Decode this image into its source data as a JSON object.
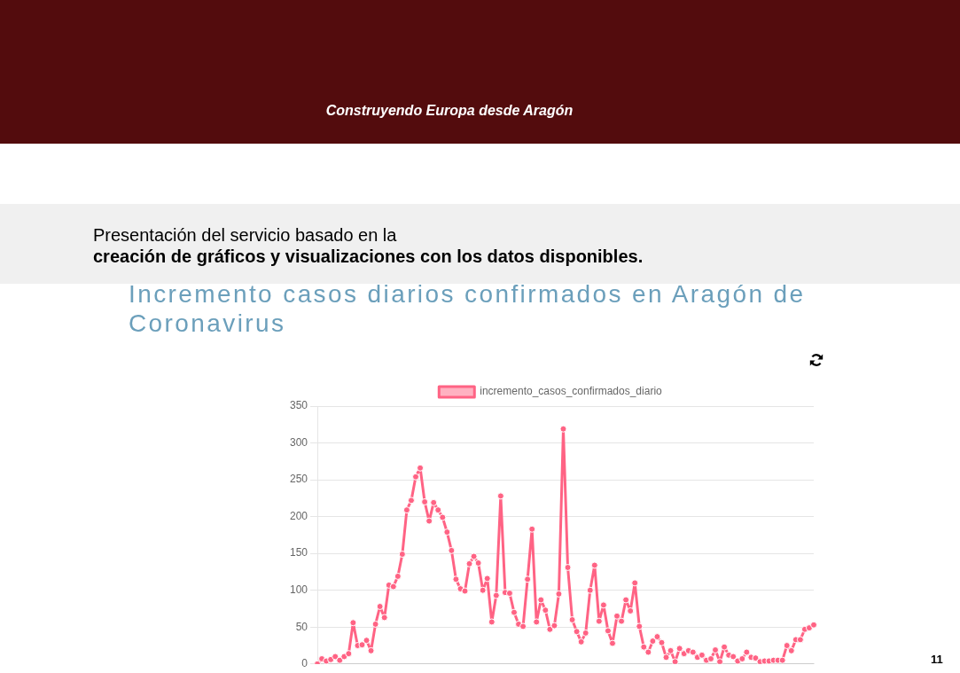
{
  "chart_data": {
    "type": "line",
    "title": "Incremento casos diarios confirmados en Aragón de Coronavirus",
    "categories": [
      null,
      null,
      null,
      null,
      null,
      null,
      null,
      null,
      null,
      null,
      null,
      null,
      null,
      null,
      null,
      null,
      null,
      null,
      null,
      null,
      null,
      null,
      null,
      null,
      null,
      null,
      null,
      null,
      null,
      null,
      null,
      null,
      null,
      null,
      null,
      null,
      null,
      null,
      null,
      null,
      null,
      null,
      null,
      null,
      null,
      null,
      null,
      null,
      null,
      null,
      null,
      null,
      null,
      null,
      null,
      null,
      null,
      null,
      null,
      null,
      null,
      null,
      null,
      null,
      null,
      null,
      null,
      null,
      null,
      null,
      null,
      null,
      null,
      null,
      null,
      null,
      null,
      null,
      null,
      null,
      null,
      null,
      null,
      null,
      null,
      null,
      null,
      null,
      null,
      null,
      null,
      null,
      null,
      null,
      null,
      null,
      null,
      null,
      null,
      null,
      null,
      null,
      null,
      null,
      null,
      null,
      null,
      null,
      null,
      null,
      null,
      null
    ],
    "series": [
      {
        "name": "incremento_casos_confirmados_diario",
        "color": "#ff6384",
        "values": [
          0,
          7,
          4,
          6,
          10,
          5,
          10,
          14,
          56,
          25,
          26,
          32,
          18,
          54,
          78,
          63,
          107,
          105,
          119,
          149,
          209,
          222,
          254,
          266,
          220,
          194,
          219,
          209,
          199,
          179,
          154,
          115,
          102,
          99,
          136,
          146,
          137,
          100,
          116,
          57,
          93,
          228,
          97,
          96,
          70,
          54,
          51,
          115,
          183,
          57,
          87,
          73,
          47,
          52,
          95,
          319,
          131,
          60,
          44,
          30,
          42,
          100,
          134,
          58,
          80,
          45,
          28,
          65,
          58,
          87,
          72,
          110,
          51,
          23,
          16,
          31,
          37,
          29,
          9,
          18,
          3,
          21,
          14,
          18,
          16,
          9,
          12,
          5,
          7,
          19,
          3,
          23,
          12,
          10,
          4,
          7,
          16,
          9,
          8,
          3,
          4,
          4,
          5,
          5,
          5,
          25,
          18,
          33,
          33,
          47,
          49,
          53
        ]
      }
    ],
    "ylim": [
      0,
      350
    ],
    "yticks": [
      0,
      50,
      100,
      150,
      200,
      250,
      300,
      350
    ],
    "grid": "y",
    "legend": "top",
    "tick_labels": "y",
    "marker": "circle",
    "line_style": "solid",
    "annotations": [
      "Construyendo Europa desde Aragón",
      "Presentación del servicio basado en la",
      "creación de gráficos y visualizaciones con los datos disponibles.",
      "11"
    ]
  }
}
